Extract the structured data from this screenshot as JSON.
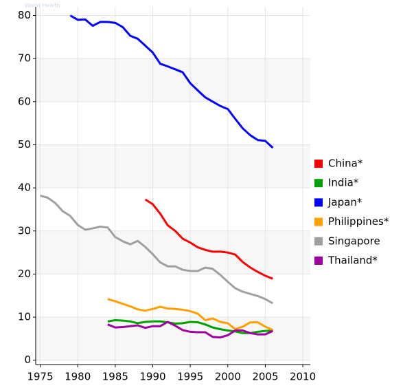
{
  "chart_data": {
    "type": "line",
    "watermark": "World Health",
    "x": [
      1975,
      1976,
      1977,
      1978,
      1979,
      1980,
      1981,
      1982,
      1983,
      1984,
      1985,
      1986,
      1987,
      1988,
      1989,
      1990,
      1991,
      1992,
      1993,
      1994,
      1995,
      1996,
      1997,
      1998,
      1999,
      2000,
      2001,
      2002,
      2003,
      2004,
      2005,
      2006
    ],
    "series": [
      {
        "name": "China*",
        "color": "#ff0000",
        "values": [
          null,
          null,
          null,
          null,
          null,
          null,
          null,
          null,
          null,
          null,
          null,
          null,
          null,
          null,
          37.3,
          36.2,
          34,
          31.3,
          30,
          28.2,
          27.3,
          26.2,
          25.6,
          25.2,
          25.2,
          25,
          24.5,
          22.8,
          21.5,
          20.5,
          19.6,
          18.9
        ]
      },
      {
        "name": "India*",
        "color": "#00a000",
        "values": [
          null,
          null,
          null,
          null,
          null,
          null,
          null,
          null,
          null,
          9,
          9.3,
          9.2,
          9,
          8.6,
          8.9,
          9,
          9,
          8.8,
          8.5,
          8.6,
          8.9,
          8.8,
          8.3,
          7.6,
          7.2,
          6.9,
          6.7,
          6.3,
          6.3,
          6.6,
          6.8,
          6.9
        ]
      },
      {
        "name": "Japan*",
        "color": "#0000ff",
        "values": [
          null,
          null,
          null,
          null,
          80,
          79,
          79.1,
          77.6,
          78.5,
          78.5,
          78.3,
          77.3,
          75.3,
          74.6,
          73,
          71.4,
          68.8,
          68.2,
          67.5,
          66.8,
          64.3,
          62.6,
          61,
          60,
          59,
          58.3,
          56,
          53.8,
          52.2,
          51.1,
          50.9,
          49.3
        ]
      },
      {
        "name": "Philippines*",
        "color": "#ffa000",
        "values": [
          null,
          null,
          null,
          null,
          null,
          null,
          null,
          null,
          null,
          14.2,
          13.7,
          13.1,
          12.5,
          11.8,
          11.5,
          11.9,
          12.4,
          12,
          11.9,
          11.7,
          11.4,
          10.8,
          9.3,
          9.7,
          8.9,
          8.6,
          7.2,
          7.8,
          8.8,
          8.8,
          7.8,
          7
        ]
      },
      {
        "name": "Singapore",
        "color": "#a0a0a0",
        "values": [
          38.2,
          37.7,
          36.5,
          34.6,
          33.5,
          31.4,
          30.3,
          30.6,
          31,
          30.8,
          28.6,
          27.6,
          26.9,
          27.7,
          26.3,
          24.6,
          22.7,
          21.8,
          21.8,
          21,
          20.7,
          20.7,
          21.5,
          21.2,
          19.8,
          18.2,
          16.7,
          15.9,
          15.4,
          14.9,
          14.2,
          13.2
        ]
      },
      {
        "name": "Thailand*",
        "color": "#a000a0",
        "values": [
          null,
          null,
          null,
          null,
          null,
          null,
          null,
          null,
          null,
          8.3,
          7.6,
          7.7,
          7.9,
          8.1,
          7.5,
          7.9,
          7.9,
          8.9,
          8,
          7,
          6.6,
          6.5,
          6.5,
          5.4,
          5.3,
          5.8,
          6.9,
          6.9,
          6.3,
          6,
          6,
          6.8
        ]
      }
    ],
    "xlim": [
      1974.4,
      2011
    ],
    "ylim": [
      -1,
      82
    ],
    "xticks": [
      1975,
      1980,
      1985,
      1990,
      1995,
      2000,
      2005,
      2010
    ],
    "yticks": [
      0,
      10,
      20,
      30,
      40,
      50,
      60,
      70,
      80
    ],
    "grid": true,
    "legend": "right"
  }
}
